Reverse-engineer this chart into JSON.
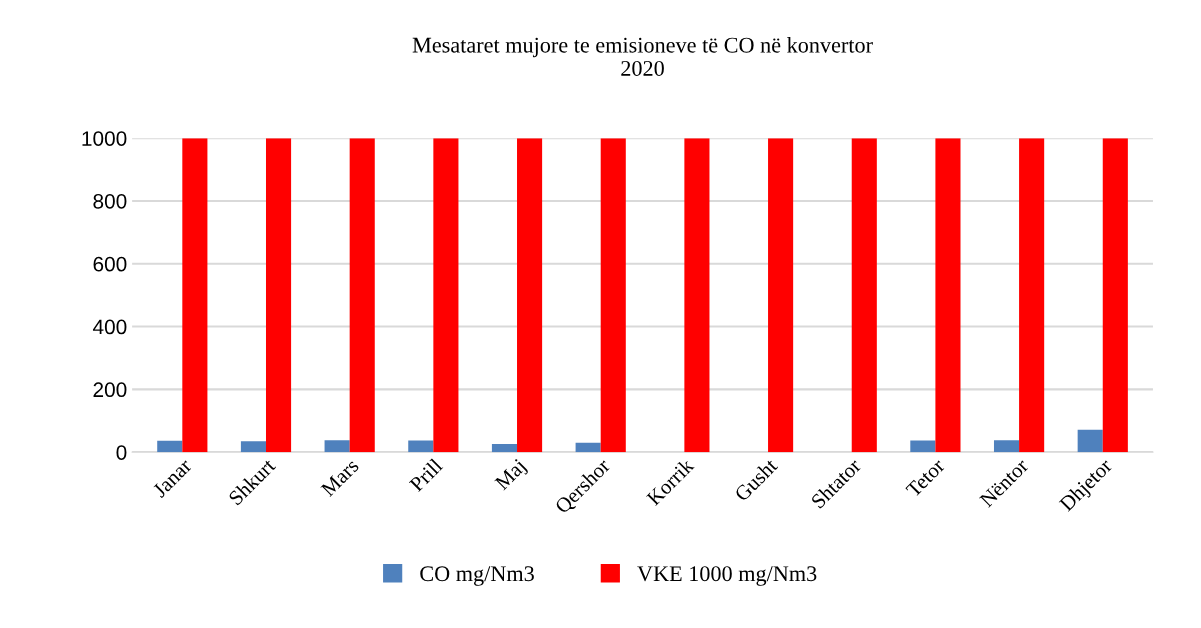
{
  "chart_data": {
    "type": "bar",
    "title": "Mesataret mujore te emisioneve të CO në konvertor\n2020",
    "categories": [
      "Janar",
      "Shkurt",
      "Mars",
      "Prill",
      "Maj",
      "Qershor",
      "Korrik",
      "Gusht",
      "Shtator",
      "Tetor",
      "Nëntor",
      "Dhjetor"
    ],
    "series": [
      {
        "name": "CO mg/Nm3",
        "color": "#4f81bd",
        "values": [
          36,
          35,
          38,
          37,
          26,
          30,
          null,
          null,
          null,
          37,
          38,
          71
        ]
      },
      {
        "name": "VKE 1000 mg/Nm3",
        "color": "#ff0000",
        "values": [
          1000,
          1000,
          1000,
          1000,
          1000,
          1000,
          1000,
          1000,
          1000,
          1000,
          1000,
          1000
        ]
      }
    ],
    "ylim": [
      0,
      1000
    ],
    "yticks": [
      0,
      200,
      400,
      600,
      800,
      1000
    ],
    "grid": "y",
    "legend": "bottom"
  }
}
